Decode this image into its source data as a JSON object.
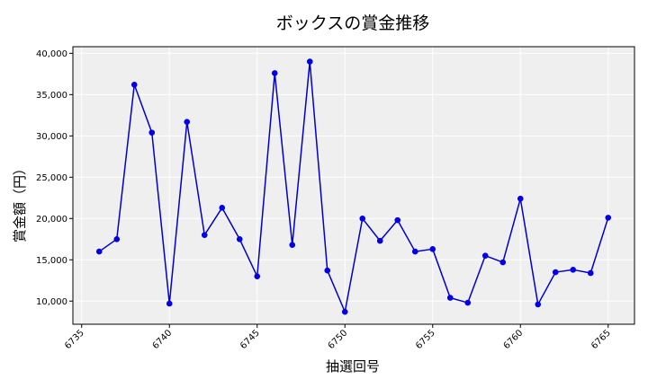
{
  "chart_data": {
    "type": "line",
    "title": "ボックスの賞金推移",
    "xlabel": "抽選回号",
    "ylabel": "賞金額（円）",
    "x": [
      6736,
      6737,
      6738,
      6739,
      6740,
      6741,
      6742,
      6743,
      6744,
      6745,
      6746,
      6747,
      6748,
      6749,
      6750,
      6751,
      6752,
      6753,
      6754,
      6755,
      6756,
      6757,
      6758,
      6759,
      6760,
      6761,
      6762,
      6763,
      6764,
      6765
    ],
    "series": [
      {
        "values": [
          16000,
          17500,
          36200,
          30400,
          9700,
          31700,
          18000,
          21300,
          17500,
          13000,
          37600,
          16800,
          39000,
          13700,
          8700,
          20000,
          17300,
          19800,
          16000,
          16300,
          10400,
          9800,
          15500,
          14700,
          22400,
          9600,
          13500,
          13800,
          13400,
          20100
        ],
        "color": "#0000cc"
      }
    ],
    "xlim": [
      6734.5,
      6766.5
    ],
    "ylim": [
      7200,
      40800
    ],
    "xticks": [
      6735,
      6740,
      6745,
      6750,
      6755,
      6760,
      6765
    ],
    "xtick_labels": [
      "6735",
      "6740",
      "6745",
      "6750",
      "6755",
      "6760",
      "6765"
    ],
    "yticks": [
      10000,
      15000,
      20000,
      25000,
      30000,
      35000,
      40000
    ],
    "ytick_labels": [
      "10,000",
      "15,000",
      "20,000",
      "25,000",
      "30,000",
      "35,000",
      "40,000"
    ],
    "grid": true,
    "legend": "none",
    "background_color": "#efefef",
    "grid_color": "#ffffff",
    "marker_color": "#0000ee"
  }
}
